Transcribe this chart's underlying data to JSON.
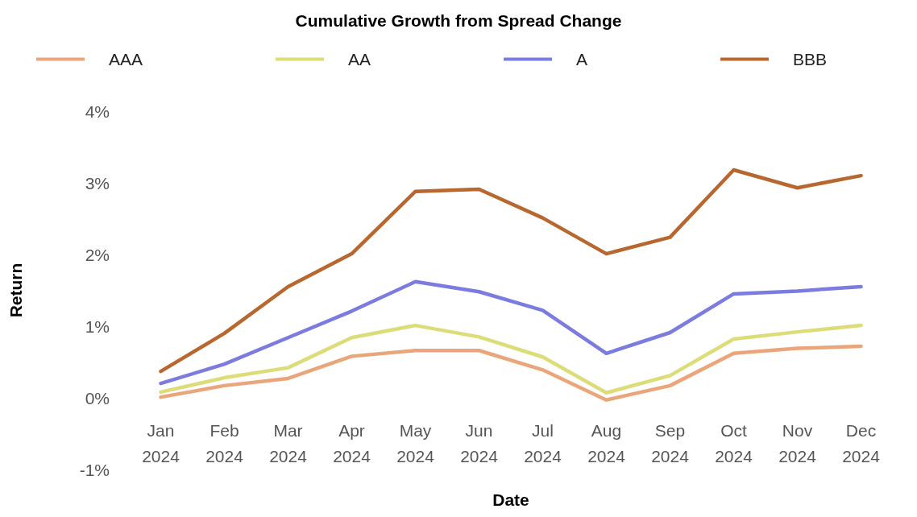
{
  "chart_data": {
    "type": "line",
    "title": "Cumulative Growth from Spread Change",
    "xlabel": "Date",
    "ylabel": "Return",
    "categories": [
      "Jan 2024",
      "Feb 2024",
      "Mar 2024",
      "Apr 2024",
      "May 2024",
      "Jun 2024",
      "Jul 2024",
      "Aug 2024",
      "Sep 2024",
      "Oct 2024",
      "Nov 2024",
      "Dec 2024"
    ],
    "series": [
      {
        "name": "AAA",
        "color": "#eaa67a",
        "values": [
          0.01,
          0.17,
          0.27,
          0.58,
          0.66,
          0.66,
          0.39,
          -0.03,
          0.17,
          0.62,
          0.69,
          0.72
        ]
      },
      {
        "name": "AA",
        "color": "#dcdc78",
        "values": [
          0.08,
          0.28,
          0.42,
          0.84,
          1.01,
          0.85,
          0.57,
          0.07,
          0.31,
          0.82,
          0.92,
          1.01
        ]
      },
      {
        "name": "A",
        "color": "#7b7be0",
        "values": [
          0.2,
          0.47,
          0.84,
          1.21,
          1.62,
          1.48,
          1.22,
          0.62,
          0.91,
          1.45,
          1.49,
          1.55
        ]
      },
      {
        "name": "BBB",
        "color": "#b8682f",
        "values": [
          0.37,
          0.9,
          1.55,
          2.01,
          2.88,
          2.91,
          2.51,
          2.01,
          2.24,
          3.18,
          2.93,
          3.1
        ]
      }
    ],
    "ylim": [
      -1,
      4
    ],
    "yticks": [
      {
        "value": -1,
        "label": "-1%"
      },
      {
        "value": 0,
        "label": "0%"
      },
      {
        "value": 1,
        "label": "1%"
      },
      {
        "value": 2,
        "label": "2%"
      },
      {
        "value": 3,
        "label": "3%"
      },
      {
        "value": 4,
        "label": "4%"
      }
    ],
    "grid": false,
    "legend": "top",
    "marker": "none",
    "line_style": "solid"
  }
}
